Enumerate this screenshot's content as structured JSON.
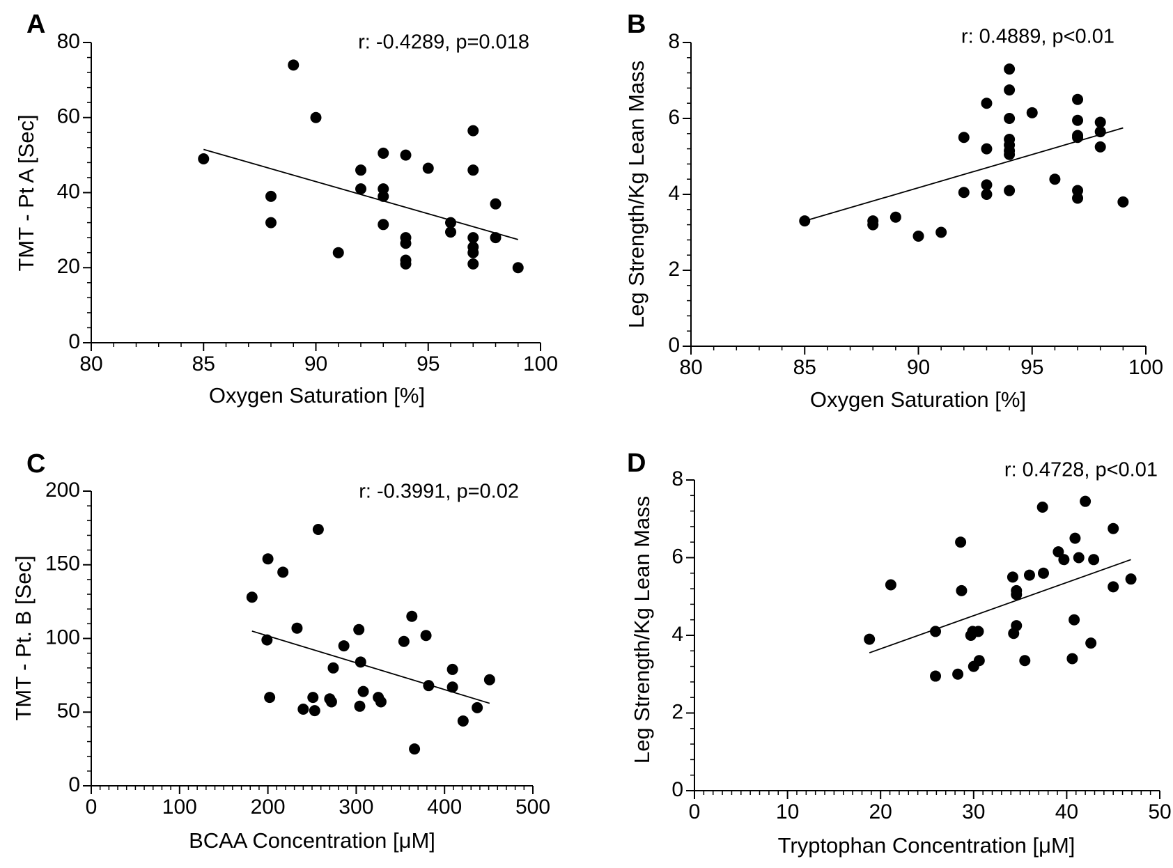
{
  "chart_data": [
    {
      "panel": "A",
      "type": "scatter",
      "title": "",
      "xlabel": "Oxygen Saturation [%]",
      "ylabel": "TMT - Pt A [Sec]",
      "xlim": [
        80,
        100
      ],
      "ylim": [
        0,
        80
      ],
      "xticks": [
        80,
        85,
        90,
        95,
        100
      ],
      "yticks": [
        0,
        20,
        40,
        60,
        80
      ],
      "annotation": "r: -0.4289, p=0.018",
      "grid": false,
      "points": [
        [
          85,
          49
        ],
        [
          88,
          39
        ],
        [
          88,
          32
        ],
        [
          89,
          74
        ],
        [
          90,
          60
        ],
        [
          91,
          24
        ],
        [
          92,
          46
        ],
        [
          92,
          41
        ],
        [
          93,
          50.5
        ],
        [
          93,
          41
        ],
        [
          93,
          39
        ],
        [
          93,
          31.5
        ],
        [
          94,
          50
        ],
        [
          94,
          28
        ],
        [
          94,
          26.5
        ],
        [
          94,
          22
        ],
        [
          94,
          21
        ],
        [
          95,
          46.5
        ],
        [
          96,
          32
        ],
        [
          96,
          29.5
        ],
        [
          97,
          56.5
        ],
        [
          97,
          46
        ],
        [
          97,
          28
        ],
        [
          97,
          25.5
        ],
        [
          97,
          24
        ],
        [
          97,
          21
        ],
        [
          98,
          37
        ],
        [
          98,
          28
        ],
        [
          99,
          20
        ]
      ],
      "fit_line": [
        [
          85,
          51.5
        ],
        [
          99,
          27.5
        ]
      ]
    },
    {
      "panel": "B",
      "type": "scatter",
      "title": "",
      "xlabel": "Oxygen Saturation [%]",
      "ylabel": "Leg Strength/Kg Lean Mass",
      "xlim": [
        80,
        100
      ],
      "ylim": [
        0,
        8
      ],
      "xticks": [
        80,
        85,
        90,
        95,
        100
      ],
      "yticks": [
        0,
        2,
        4,
        6,
        8
      ],
      "annotation": "r: 0.4889, p<0.01",
      "grid": false,
      "points": [
        [
          85,
          3.3
        ],
        [
          88,
          3.3
        ],
        [
          88,
          3.2
        ],
        [
          89,
          3.4
        ],
        [
          90,
          2.9
        ],
        [
          91,
          3.0
        ],
        [
          92,
          5.5
        ],
        [
          92,
          4.05
        ],
        [
          93,
          6.4
        ],
        [
          93,
          5.2
        ],
        [
          93,
          4.25
        ],
        [
          93,
          4.0
        ],
        [
          94,
          7.3
        ],
        [
          94,
          6.75
        ],
        [
          94,
          6.0
        ],
        [
          94,
          5.45
        ],
        [
          94,
          5.3
        ],
        [
          94,
          5.15
        ],
        [
          94,
          5.05
        ],
        [
          94,
          4.1
        ],
        [
          95,
          6.15
        ],
        [
          96,
          4.4
        ],
        [
          97,
          6.5
        ],
        [
          97,
          5.95
        ],
        [
          97,
          5.55
        ],
        [
          97,
          5.5
        ],
        [
          97,
          4.1
        ],
        [
          97,
          3.9
        ],
        [
          98,
          5.9
        ],
        [
          98,
          5.65
        ],
        [
          98,
          5.25
        ],
        [
          99,
          3.8
        ]
      ],
      "fit_line": [
        [
          85,
          3.3
        ],
        [
          99,
          5.75
        ]
      ]
    },
    {
      "panel": "C",
      "type": "scatter",
      "title": "",
      "xlabel": "BCAA Concentration [μM]",
      "ylabel": "TMT - Pt. B [Sec]",
      "xlim": [
        0,
        500
      ],
      "ylim": [
        0,
        200
      ],
      "xticks": [
        0,
        100,
        200,
        300,
        400,
        500
      ],
      "yticks": [
        0,
        50,
        100,
        150,
        200
      ],
      "annotation": "r: -0.3991, p=0.02",
      "grid": false,
      "points": [
        [
          182,
          128
        ],
        [
          200,
          154
        ],
        [
          199,
          99
        ],
        [
          202,
          60
        ],
        [
          217,
          145
        ],
        [
          233,
          107
        ],
        [
          240,
          52
        ],
        [
          251,
          60
        ],
        [
          253,
          51
        ],
        [
          257,
          174
        ],
        [
          270,
          59
        ],
        [
          272,
          57
        ],
        [
          274,
          80
        ],
        [
          286,
          95
        ],
        [
          303,
          106
        ],
        [
          304,
          54
        ],
        [
          305,
          84
        ],
        [
          308,
          64
        ],
        [
          325,
          60
        ],
        [
          328,
          57
        ],
        [
          354,
          98
        ],
        [
          363,
          115
        ],
        [
          366,
          25
        ],
        [
          379,
          102
        ],
        [
          382,
          68
        ],
        [
          409,
          79
        ],
        [
          409,
          67
        ],
        [
          421,
          44
        ],
        [
          437,
          53
        ],
        [
          451,
          72
        ]
      ],
      "fit_line": [
        [
          182,
          105
        ],
        [
          451,
          56
        ]
      ]
    },
    {
      "panel": "D",
      "type": "scatter",
      "title": "",
      "xlabel": "Tryptophan Concentration [μM]",
      "ylabel": "Leg Strength/Kg Lean Mass",
      "xlim": [
        0,
        50
      ],
      "ylim": [
        0,
        8
      ],
      "xticks": [
        0,
        10,
        20,
        30,
        40,
        50
      ],
      "yticks": [
        0,
        2,
        4,
        6,
        8
      ],
      "annotation": "r: 0.4728, p<0.01",
      "grid": false,
      "points": [
        [
          18.8,
          3.9
        ],
        [
          21.1,
          5.3
        ],
        [
          25.9,
          2.95
        ],
        [
          25.9,
          4.1
        ],
        [
          28.3,
          3.0
        ],
        [
          28.6,
          6.4
        ],
        [
          28.7,
          5.15
        ],
        [
          29.7,
          4.0
        ],
        [
          29.9,
          4.1
        ],
        [
          30.0,
          3.2
        ],
        [
          30.5,
          4.1
        ],
        [
          30.6,
          3.35
        ],
        [
          34.2,
          5.5
        ],
        [
          34.3,
          4.05
        ],
        [
          34.6,
          4.25
        ],
        [
          34.6,
          5.15
        ],
        [
          34.6,
          5.05
        ],
        [
          35.5,
          3.35
        ],
        [
          36.0,
          5.55
        ],
        [
          37.4,
          7.3
        ],
        [
          37.5,
          5.6
        ],
        [
          39.1,
          6.15
        ],
        [
          39.7,
          5.95
        ],
        [
          40.6,
          3.4
        ],
        [
          40.8,
          4.4
        ],
        [
          40.9,
          6.5
        ],
        [
          41.3,
          6.0
        ],
        [
          42.0,
          7.45
        ],
        [
          42.6,
          3.8
        ],
        [
          42.9,
          5.95
        ],
        [
          45.0,
          6.75
        ],
        [
          45.0,
          5.25
        ],
        [
          46.9,
          5.45
        ]
      ],
      "fit_line": [
        [
          18.8,
          3.55
        ],
        [
          46.9,
          5.95
        ]
      ]
    }
  ]
}
